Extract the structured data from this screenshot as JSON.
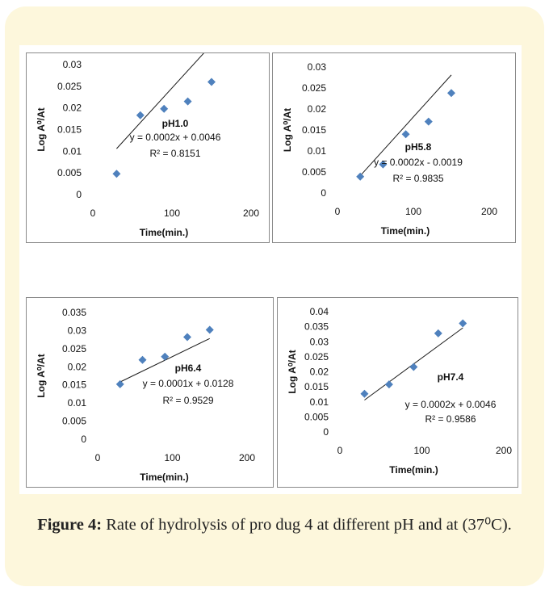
{
  "caption": {
    "label": "Figure 4:",
    "text": "Rate of hydrolysis of pro dug 4 at different pH and at (37⁰C)."
  },
  "colors": {
    "marker": "#4f81bd",
    "line": "#1a1a1a",
    "card": "#fdf7dc",
    "frame": "#8a8a8a"
  },
  "chart_data": [
    {
      "type": "scatter",
      "ph_label": "pH1.0",
      "equation": "y = 0.0002x + 0.0046",
      "r2": "R² = 0.8151",
      "xlabel": "Time(min.)",
      "ylabel": "Log A⁰/At",
      "xlim": [
        0,
        200
      ],
      "ylim": [
        0,
        0.03
      ],
      "xticks": [
        0,
        100,
        200
      ],
      "xtick_labels": [
        "0",
        "100",
        "200"
      ],
      "yticks": [
        0,
        0.005,
        0.01,
        0.015,
        0.02,
        0.025,
        0.03
      ],
      "ytick_labels": [
        "0",
        "0.005",
        "0.01",
        "0.015",
        "0.02",
        "0.025",
        "0.03"
      ],
      "x": [
        30,
        60,
        90,
        120,
        150
      ],
      "y": [
        0.0048,
        0.0183,
        0.0198,
        0.0215,
        0.026
      ],
      "trendline": {
        "slope": 0.0002,
        "intercept": 0.0046
      }
    },
    {
      "type": "scatter",
      "ph_label": "pH5.8",
      "equation": "y = 0.0002x - 0.0019",
      "r2": "R² = 0.9835",
      "xlabel": "Time(min.)",
      "ylabel": "Log A⁰/At",
      "xlim": [
        0,
        200
      ],
      "ylim": [
        0,
        0.03
      ],
      "xticks": [
        0,
        100,
        200
      ],
      "xtick_labels": [
        "0",
        "100",
        "200"
      ],
      "yticks": [
        0,
        0.005,
        0.01,
        0.015,
        0.02,
        0.025,
        0.03
      ],
      "ytick_labels": [
        "0",
        "0.005",
        "0.01",
        "0.015",
        "0.02",
        "0.025",
        "0.03"
      ],
      "x": [
        30,
        60,
        90,
        120,
        150
      ],
      "y": [
        0.0039,
        0.0068,
        0.014,
        0.017,
        0.0238
      ],
      "trendline": {
        "slope": 0.0002,
        "intercept": -0.0019
      }
    },
    {
      "type": "scatter",
      "ph_label": "pH6.4",
      "equation": "y = 0.0001x + 0.0128",
      "r2": "R² = 0.9529",
      "xlabel": "Time(min.)",
      "ylabel": "Log A⁰/At",
      "xlim": [
        0,
        200
      ],
      "ylim": [
        0,
        0.035
      ],
      "xticks": [
        0,
        100,
        200
      ],
      "xtick_labels": [
        "0",
        "100",
        "200"
      ],
      "yticks": [
        0,
        0.005,
        0.01,
        0.015,
        0.02,
        0.025,
        0.03,
        0.035
      ],
      "ytick_labels": [
        "0",
        "0.005",
        "0.01",
        "0.015",
        "0.02",
        "0.025",
        "0.03",
        "0.035"
      ],
      "x": [
        30,
        60,
        90,
        120,
        150
      ],
      "y": [
        0.0152,
        0.0219,
        0.0228,
        0.0282,
        0.0302
      ],
      "trendline": {
        "slope": 0.0001,
        "intercept": 0.0128
      }
    },
    {
      "type": "scatter",
      "ph_label": "pH7.4",
      "equation": "y = 0.0002x + 0.0046",
      "r2": "R² = 0.9586",
      "xlabel": "Time(min.)",
      "ylabel": "Log A⁰/At",
      "xlim": [
        0,
        200
      ],
      "ylim": [
        0,
        0.04
      ],
      "xticks": [
        0,
        100,
        200
      ],
      "xtick_labels": [
        "0",
        "100",
        "200"
      ],
      "yticks": [
        0,
        0.005,
        0.01,
        0.015,
        0.02,
        0.025,
        0.03,
        0.035,
        0.04
      ],
      "ytick_labels": [
        "0",
        "0.005",
        "0.01",
        "0.015",
        "0.02",
        "0.025",
        "0.03",
        "0.035",
        "0.04"
      ],
      "x": [
        30,
        60,
        90,
        120,
        150
      ],
      "y": [
        0.0127,
        0.0158,
        0.0216,
        0.0328,
        0.0361
      ],
      "trendline": {
        "slope": 0.0002,
        "intercept": 0.0046
      }
    }
  ]
}
